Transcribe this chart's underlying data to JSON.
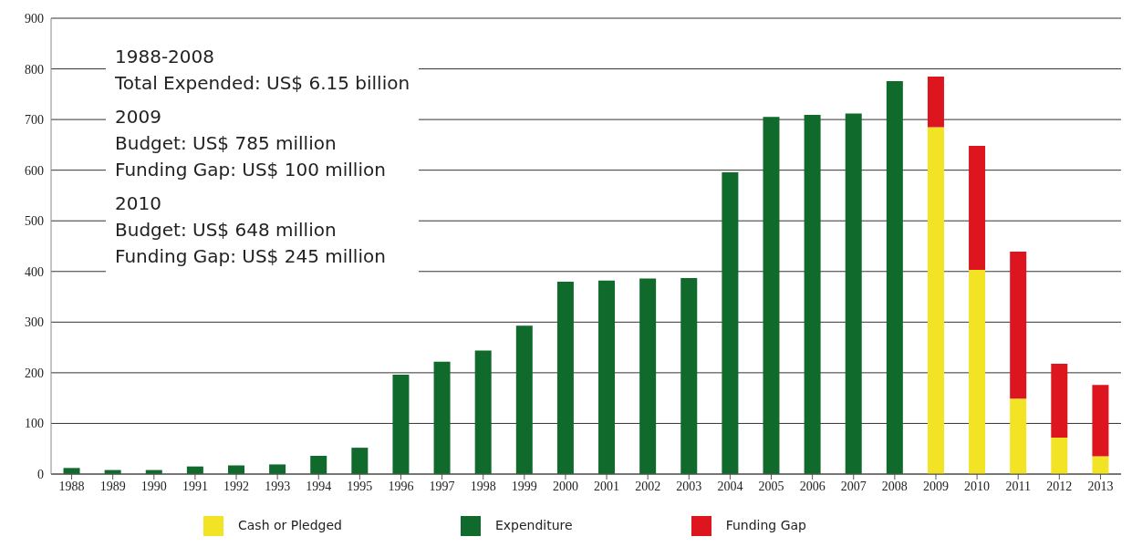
{
  "chart_data": {
    "type": "bar",
    "stacked": true,
    "categories": [
      "1988",
      "1989",
      "1990",
      "1991",
      "1992",
      "1993",
      "1994",
      "1995",
      "1996",
      "1997",
      "1998",
      "1999",
      "2000",
      "2001",
      "2002",
      "2003",
      "2004",
      "2005",
      "2006",
      "2007",
      "2008",
      "2009",
      "2010",
      "2011",
      "2012",
      "2013"
    ],
    "series": [
      {
        "name": "Expenditure",
        "color": "#0f6a2c",
        "values": [
          12,
          8,
          8,
          15,
          17,
          19,
          36,
          52,
          196,
          222,
          244,
          293,
          380,
          382,
          386,
          387,
          596,
          705,
          709,
          712,
          776,
          null,
          null,
          null,
          null,
          null
        ]
      },
      {
        "name": "Cash or Pledged",
        "color": "#f2e324",
        "values": [
          null,
          null,
          null,
          null,
          null,
          null,
          null,
          null,
          null,
          null,
          null,
          null,
          null,
          null,
          null,
          null,
          null,
          null,
          null,
          null,
          null,
          685,
          403,
          149,
          72,
          35
        ]
      },
      {
        "name": "Funding Gap",
        "color": "#dc151e",
        "values": [
          null,
          null,
          null,
          null,
          null,
          null,
          null,
          null,
          null,
          null,
          null,
          null,
          null,
          null,
          null,
          null,
          null,
          null,
          null,
          null,
          null,
          100,
          245,
          290,
          146,
          141
        ]
      }
    ],
    "ylim": [
      0,
      900
    ],
    "yticks": [
      0,
      100,
      200,
      300,
      400,
      500,
      600,
      700,
      800,
      900
    ],
    "grid": "y",
    "legend": "bottom",
    "annotations": [
      "1988-2008",
      "Total Expended: US$ 6.15 billion",
      "2009",
      "Budget: US$ 785 million",
      "Funding Gap: US$ 100 million",
      "2010",
      "Budget: US$ 648 million",
      "Funding Gap: US$ 245 million"
    ]
  }
}
